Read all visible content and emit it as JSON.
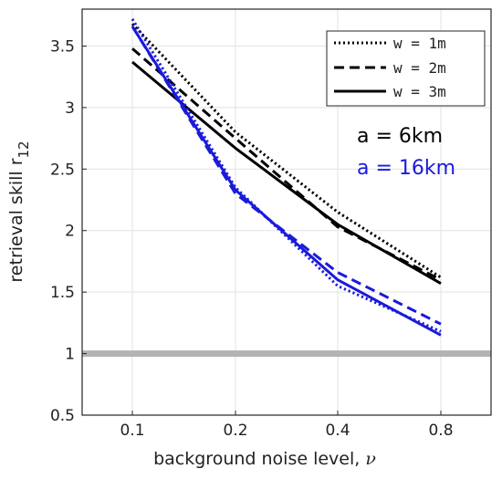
{
  "chart_data": {
    "type": "line",
    "xlabel": "background noise level, ",
    "xlabel_symbol": "ν",
    "ylabel": "retrieval skill  r",
    "ylabel_subscript": "12",
    "x": [
      0.1,
      0.2,
      0.4,
      0.8
    ],
    "x_tick_labels": [
      "0.1",
      "0.2",
      "0.4",
      "0.8"
    ],
    "y_ticks": [
      0.5,
      1,
      1.5,
      2,
      2.5,
      3,
      3.5
    ],
    "y_tick_labels": [
      "0.5",
      "1",
      "1.5",
      "2",
      "2.5",
      "3",
      "3.5"
    ],
    "ylim": [
      0.5,
      3.8
    ],
    "x_axis_log_scale": true,
    "grid": true,
    "reference_line": {
      "y": 1,
      "color": "#b3b3b3"
    },
    "legend": {
      "position": "top-right",
      "entries": [
        {
          "label": "w = 1m",
          "style": "dotted"
        },
        {
          "label": "w = 2m",
          "style": "dashed"
        },
        {
          "label": "w = 3m",
          "style": "solid"
        }
      ]
    },
    "annotations": [
      {
        "text": "a = 6km",
        "color": "#000000"
      },
      {
        "text": "a = 16km",
        "color": "#1a1adb"
      }
    ],
    "series": [
      {
        "a": "6km",
        "w": "1m",
        "style": "dotted",
        "color": "#000000",
        "values": [
          3.68,
          2.8,
          2.15,
          1.62
        ]
      },
      {
        "a": "6km",
        "w": "2m",
        "style": "dashed",
        "color": "#000000",
        "values": [
          3.48,
          2.75,
          2.03,
          1.6
        ]
      },
      {
        "a": "6km",
        "w": "3m",
        "style": "solid",
        "color": "#000000",
        "values": [
          3.37,
          2.67,
          2.05,
          1.57
        ]
      },
      {
        "a": "16km",
        "w": "1m",
        "style": "dotted",
        "color": "#1a1adb",
        "values": [
          3.72,
          2.35,
          1.55,
          1.18
        ]
      },
      {
        "a": "16km",
        "w": "2m",
        "style": "dashed",
        "color": "#1a1adb",
        "values": [
          3.66,
          2.3,
          1.66,
          1.24
        ]
      },
      {
        "a": "16km",
        "w": "3m",
        "style": "solid",
        "color": "#1a1adb",
        "values": [
          3.66,
          2.33,
          1.6,
          1.15
        ]
      }
    ]
  }
}
